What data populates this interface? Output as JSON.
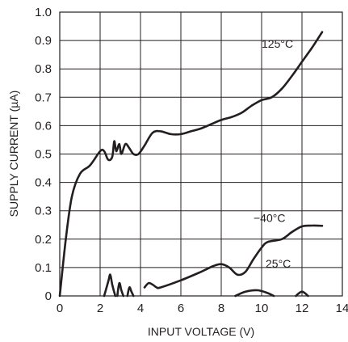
{
  "chart_data": {
    "type": "line",
    "xlabel": "INPUT VOLTAGE (V)",
    "ylabel": "SUPPLY CURRENT (µA)",
    "xlim": [
      0,
      14
    ],
    "ylim": [
      0,
      1.0
    ],
    "grid": true,
    "x_ticks": [
      "0",
      "2",
      "4",
      "6",
      "8",
      "10",
      "12",
      "14"
    ],
    "y_ticks": [
      "0",
      "0.1",
      "0.2",
      "0.3",
      "0.4",
      "0.5",
      "0.6",
      "0.7",
      "0.8",
      "0.9",
      "1.0"
    ],
    "series": [
      {
        "name": "125°C",
        "label_at": [
          10.0,
          0.875
        ],
        "points": [
          [
            0,
            0
          ],
          [
            0.3,
            0.2
          ],
          [
            0.6,
            0.35
          ],
          [
            1.0,
            0.43
          ],
          [
            1.5,
            0.46
          ],
          [
            2.0,
            0.51
          ],
          [
            2.2,
            0.51
          ],
          [
            2.4,
            0.48
          ],
          [
            2.6,
            0.49
          ],
          [
            2.7,
            0.545
          ],
          [
            2.8,
            0.51
          ],
          [
            2.95,
            0.535
          ],
          [
            3.05,
            0.5
          ],
          [
            3.25,
            0.535
          ],
          [
            3.45,
            0.52
          ],
          [
            3.65,
            0.5
          ],
          [
            3.9,
            0.5
          ],
          [
            4.2,
            0.53
          ],
          [
            4.6,
            0.575
          ],
          [
            5.0,
            0.58
          ],
          [
            5.5,
            0.57
          ],
          [
            6.0,
            0.57
          ],
          [
            6.5,
            0.58
          ],
          [
            7.0,
            0.59
          ],
          [
            7.5,
            0.605
          ],
          [
            8.0,
            0.62
          ],
          [
            8.5,
            0.63
          ],
          [
            9.0,
            0.645
          ],
          [
            9.5,
            0.67
          ],
          [
            10.0,
            0.69
          ],
          [
            10.5,
            0.7
          ],
          [
            11.0,
            0.73
          ],
          [
            11.5,
            0.775
          ],
          [
            12.0,
            0.825
          ],
          [
            12.5,
            0.875
          ],
          [
            13.0,
            0.93
          ]
        ]
      },
      {
        "name": "−40°C",
        "label_at": [
          9.6,
          0.26
        ],
        "points": [
          [
            4.2,
            0.03
          ],
          [
            4.4,
            0.045
          ],
          [
            4.6,
            0.04
          ],
          [
            4.8,
            0.03
          ],
          [
            5.0,
            0.03
          ],
          [
            6.0,
            0.055
          ],
          [
            7.0,
            0.085
          ],
          [
            7.6,
            0.105
          ],
          [
            8.0,
            0.112
          ],
          [
            8.4,
            0.1
          ],
          [
            8.8,
            0.075
          ],
          [
            9.2,
            0.085
          ],
          [
            9.6,
            0.13
          ],
          [
            10.0,
            0.17
          ],
          [
            10.3,
            0.19
          ],
          [
            11.0,
            0.2
          ],
          [
            11.5,
            0.225
          ],
          [
            12.0,
            0.245
          ],
          [
            12.5,
            0.248
          ],
          [
            13.0,
            0.247
          ]
        ]
      },
      {
        "name": "25°C",
        "label_at": [
          10.2,
          0.1
        ],
        "segments": [
          [
            [
              2.2,
              0
            ],
            [
              2.4,
              0.05
            ],
            [
              2.5,
              0.075
            ],
            [
              2.6,
              0.04
            ],
            [
              2.75,
              0
            ]
          ],
          [
            [
              2.85,
              0
            ],
            [
              2.95,
              0.045
            ],
            [
              3.05,
              0.02
            ],
            [
              3.15,
              0
            ]
          ],
          [
            [
              3.35,
              0
            ],
            [
              3.45,
              0.03
            ],
            [
              3.55,
              0.015
            ],
            [
              3.65,
              0
            ]
          ],
          [
            [
              8.7,
              0
            ],
            [
              9.2,
              0.015
            ],
            [
              9.8,
              0.02
            ],
            [
              10.3,
              0.01
            ],
            [
              10.6,
              0
            ]
          ],
          [
            [
              11.7,
              0
            ],
            [
              12.0,
              0.015
            ],
            [
              12.3,
              0
            ]
          ]
        ]
      }
    ]
  }
}
